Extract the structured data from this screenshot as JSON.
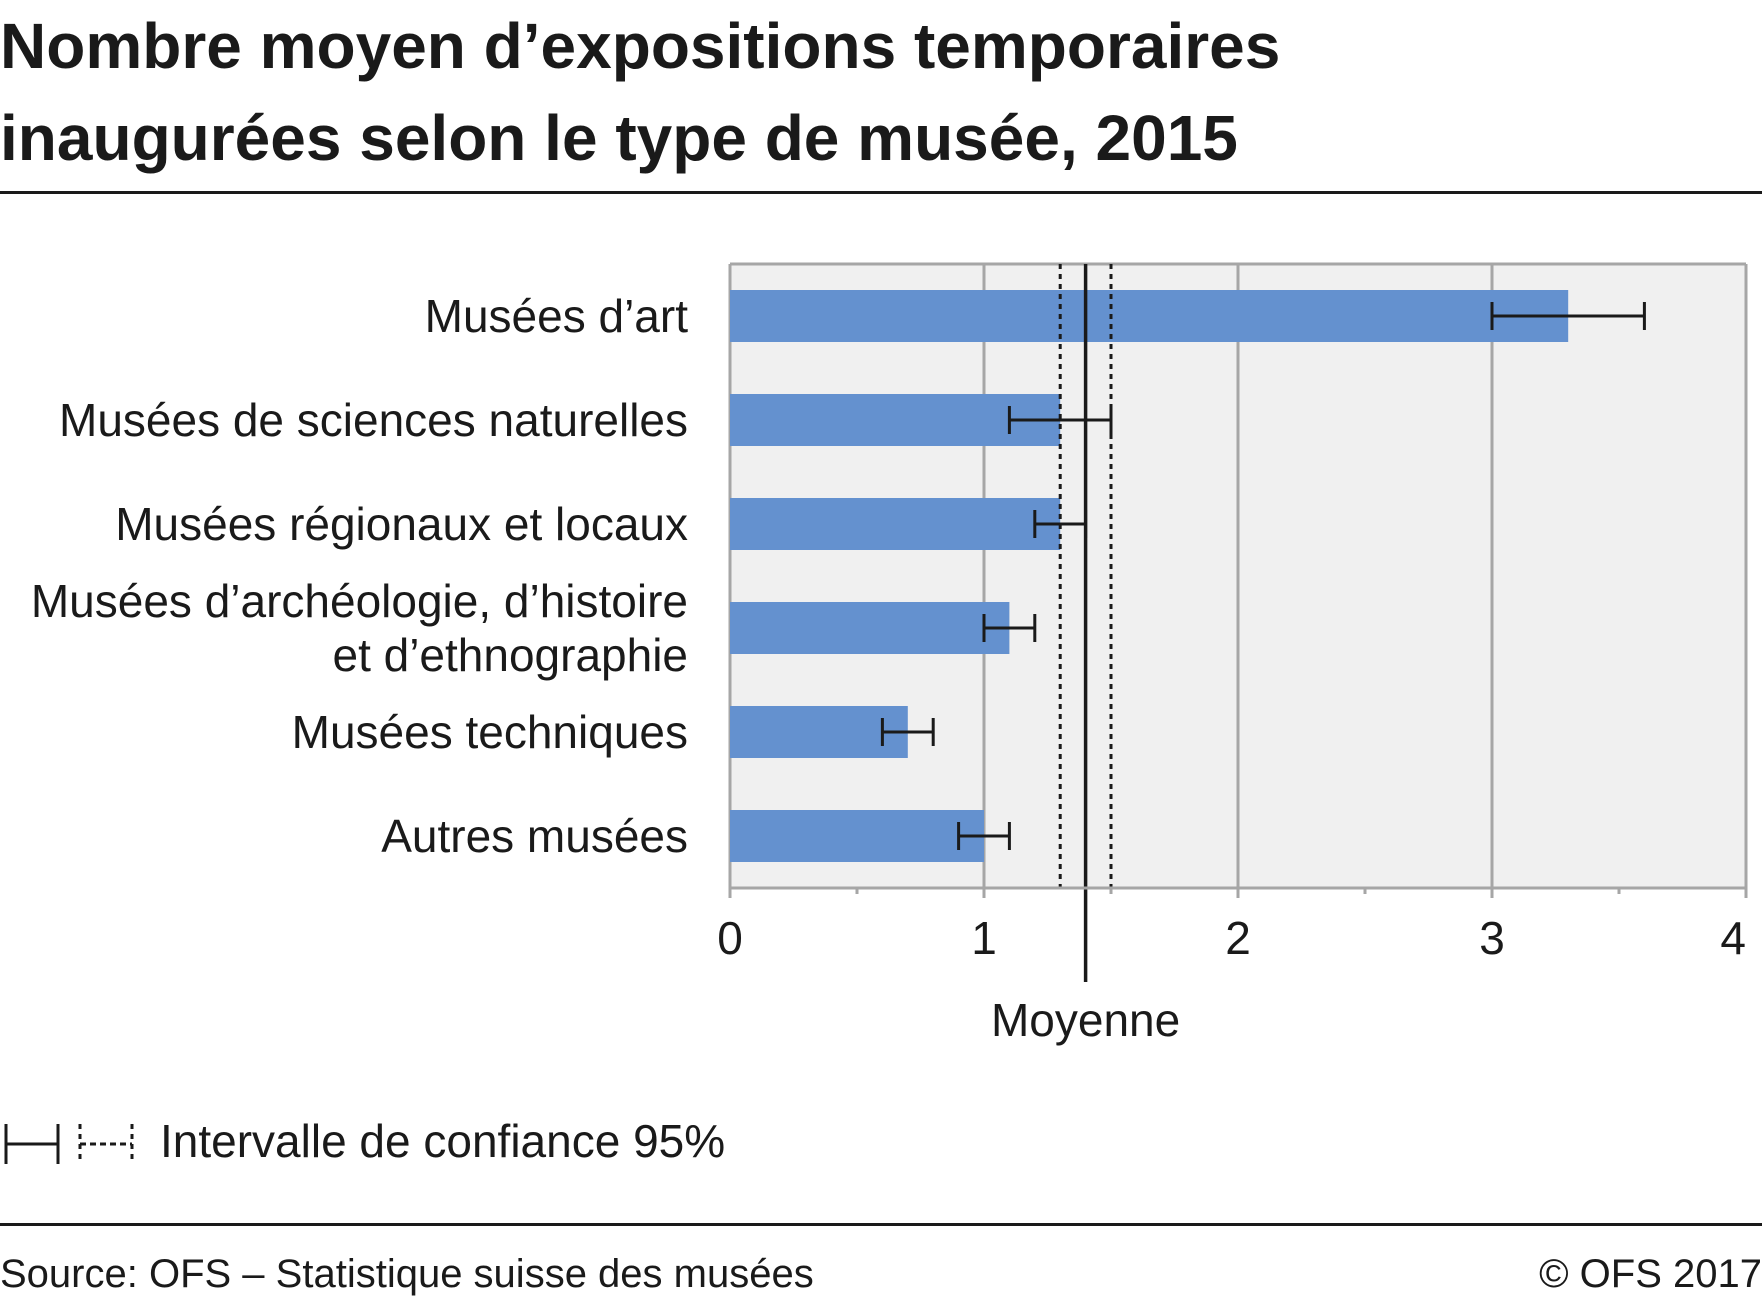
{
  "title": {
    "line1": "Nombre moyen d’expositions temporaires",
    "line2": "inaugurées selon le type de musée, 2015"
  },
  "chart_data": {
    "type": "bar",
    "orientation": "horizontal",
    "categories": [
      [
        "Musées d’art"
      ],
      [
        "Musées de sciences naturelles"
      ],
      [
        "Musées régionaux et locaux"
      ],
      [
        "Musées d’archéologie, d’histoire",
        "et d’ethnographie"
      ],
      [
        "Musées techniques"
      ],
      [
        "Autres musées"
      ]
    ],
    "values": [
      3.3,
      1.3,
      1.3,
      1.1,
      0.7,
      1.0
    ],
    "ci_low": [
      3.0,
      1.1,
      1.2,
      1.0,
      0.6,
      0.9
    ],
    "ci_high": [
      3.6,
      1.5,
      1.4,
      1.2,
      0.8,
      1.1
    ],
    "mean": {
      "label": "Moyenne",
      "value": 1.4,
      "ci_low": 1.3,
      "ci_high": 1.5
    },
    "xlim": [
      0,
      4
    ],
    "xticks": [
      0,
      1,
      2,
      3,
      4
    ],
    "xtick_labels": [
      "0",
      "1",
      "2",
      "3",
      "4"
    ],
    "grid": true,
    "bar_color": "#6491cf",
    "plot_background": "#f0f0f0",
    "grid_color": "#a6a6a6",
    "text_color": "#1a1a1a"
  },
  "legend": {
    "label": "Intervalle de confiance 95%"
  },
  "footer": {
    "source": "Source: OFS – Statistique suisse des musées",
    "copyright": "© OFS 2017"
  }
}
